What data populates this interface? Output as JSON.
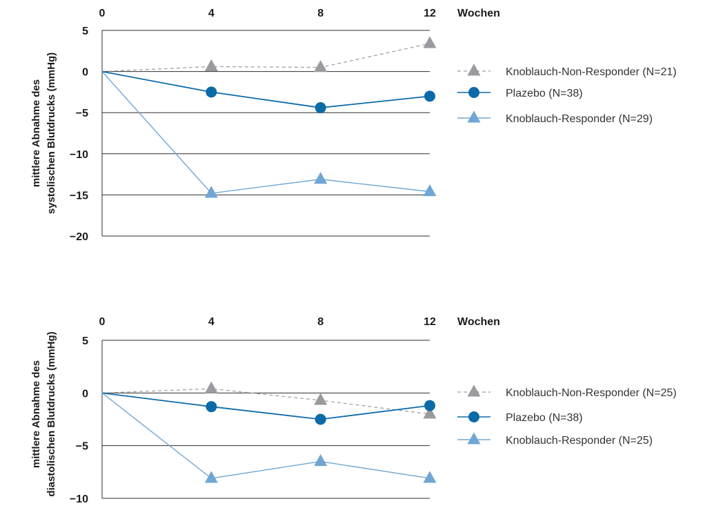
{
  "chart_data": [
    {
      "type": "line",
      "x_ticks": [
        "0",
        "4",
        "8",
        "12"
      ],
      "x_unit_label": "Wochen",
      "ylabel_lines": [
        "mittlere Abnahme des",
        "systolischen Blutdrucks (mmHg)"
      ],
      "ylim": [
        -20,
        5
      ],
      "y_ticks": [
        "5",
        "0",
        "−5",
        "−10",
        "−15",
        "−20"
      ],
      "y_tick_values": [
        5,
        0,
        -5,
        -10,
        -15,
        -20
      ],
      "x": [
        0,
        4,
        8,
        12
      ],
      "legend_position": "right",
      "series": [
        {
          "name": "Knoblauch-Non-Responder (N=21)",
          "values": [
            0,
            0.6,
            0.5,
            3.4
          ],
          "color": "#9a9a9f",
          "marker": "triangle",
          "dash": true
        },
        {
          "name": "Plazebo (N=38)",
          "values": [
            0,
            -2.5,
            -4.4,
            -3.0
          ],
          "color": "#0b6aa8",
          "marker": "circle",
          "dash": false
        },
        {
          "name": "Knoblauch-Responder (N=29)",
          "values": [
            0,
            -14.8,
            -13.1,
            -14.6
          ],
          "color": "#6fa6d3",
          "marker": "triangle",
          "dash": false
        }
      ]
    },
    {
      "type": "line",
      "x_ticks": [
        "0",
        "4",
        "8",
        "12"
      ],
      "x_unit_label": "Wochen",
      "ylabel_lines": [
        "mittlere Abnahme des",
        "diastolischen Blutdrucks (mmHg)"
      ],
      "ylim": [
        -10,
        5
      ],
      "y_ticks": [
        "5",
        "0",
        "−5",
        "−10"
      ],
      "y_tick_values": [
        5,
        0,
        -5,
        -10
      ],
      "x": [
        0,
        4,
        8,
        12
      ],
      "legend_position": "right",
      "series": [
        {
          "name": "Knoblauch-Non-Responder (N=25)",
          "values": [
            0,
            0.4,
            -0.7,
            -2.0
          ],
          "color": "#9a9a9f",
          "marker": "triangle",
          "dash": true
        },
        {
          "name": "Plazebo (N=38)",
          "values": [
            0,
            -1.3,
            -2.5,
            -1.2
          ],
          "color": "#0b6aa8",
          "marker": "circle",
          "dash": false
        },
        {
          "name": "Knoblauch-Responder (N=25)",
          "values": [
            0,
            -8.1,
            -6.5,
            -8.1
          ],
          "color": "#6fa6d3",
          "marker": "triangle",
          "dash": false
        }
      ]
    }
  ]
}
